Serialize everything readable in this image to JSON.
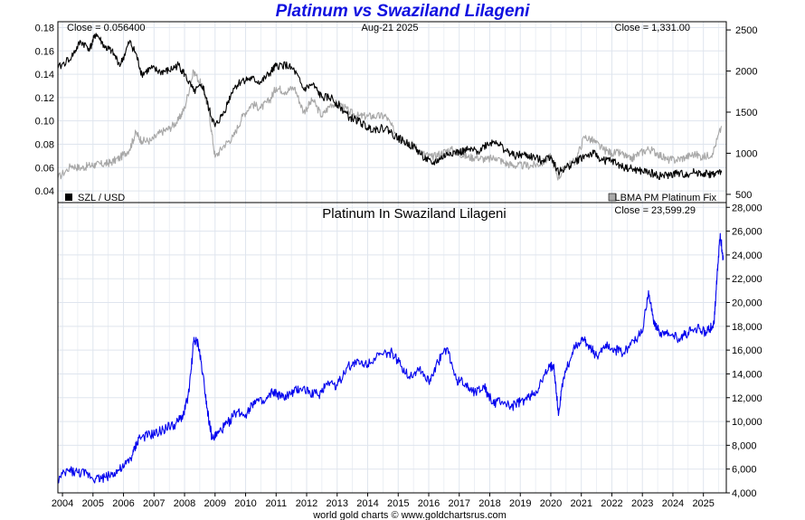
{
  "title": "Platinum vs Swaziland Lilageni",
  "footer": "world gold charts © www.goldchartsrus.com",
  "colors": {
    "title": "#1010e0",
    "szl": "#000000",
    "platinum_usd": "#a8a8a8",
    "platinum_szl": "#0000ee",
    "grid": "#dfe5ee"
  },
  "chart_data": [
    {
      "type": "line",
      "name": "top-panel",
      "header_left": "Close = 0.056400",
      "header_center": "Aug-21  2025",
      "header_right": "Close = 1,331.00",
      "x_ticks": [
        "2004",
        "2005",
        "2006",
        "2007",
        "2008",
        "2009",
        "2010",
        "2011",
        "2012",
        "2013",
        "2014",
        "2015",
        "2016",
        "2017",
        "2018",
        "2019",
        "2020",
        "2021",
        "2022",
        "2023",
        "2024",
        "2025"
      ],
      "xlim": [
        2003.85,
        2025.75
      ],
      "left_axis": {
        "ylim": [
          0.03,
          0.185
        ],
        "ticks": [
          "0.04",
          "0.06",
          "0.08",
          "0.10",
          "0.12",
          "0.14",
          "0.16",
          "0.18"
        ],
        "tick_values": [
          0.04,
          0.06,
          0.08,
          0.1,
          0.12,
          0.14,
          0.16,
          0.18
        ]
      },
      "right_axis": {
        "ylim": [
          400,
          2600
        ],
        "ticks": [
          "500",
          "1000",
          "1500",
          "2000",
          "2500"
        ],
        "tick_values": [
          500,
          1000,
          1500,
          2000,
          2500
        ]
      },
      "grid": true,
      "series": [
        {
          "name": "SZL / USD",
          "axis": "left",
          "x": [
            2003.85,
            2004.3,
            2004.6,
            2004.9,
            2005.1,
            2005.4,
            2005.6,
            2005.9,
            2006.2,
            2006.4,
            2006.6,
            2006.9,
            2007.2,
            2007.5,
            2007.8,
            2008.0,
            2008.3,
            2008.6,
            2008.8,
            2009.0,
            2009.3,
            2009.6,
            2009.9,
            2010.2,
            2010.5,
            2010.8,
            2011.0,
            2011.3,
            2011.6,
            2011.9,
            2012.2,
            2012.5,
            2012.8,
            2013.1,
            2013.4,
            2013.7,
            2014.0,
            2014.3,
            2014.6,
            2014.9,
            2015.2,
            2015.5,
            2015.8,
            2016.1,
            2016.4,
            2016.7,
            2017.0,
            2017.3,
            2017.6,
            2017.9,
            2018.2,
            2018.5,
            2018.8,
            2019.1,
            2019.4,
            2019.7,
            2020.0,
            2020.25,
            2020.5,
            2020.8,
            2021.1,
            2021.4,
            2021.7,
            2022.0,
            2022.3,
            2022.6,
            2022.9,
            2023.2,
            2023.5,
            2023.8,
            2024.1,
            2024.4,
            2024.7,
            2025.0,
            2025.3,
            2025.6
          ],
          "values": [
            0.145,
            0.155,
            0.168,
            0.162,
            0.175,
            0.163,
            0.16,
            0.148,
            0.168,
            0.158,
            0.14,
            0.145,
            0.142,
            0.143,
            0.148,
            0.14,
            0.125,
            0.13,
            0.11,
            0.095,
            0.108,
            0.128,
            0.135,
            0.136,
            0.133,
            0.141,
            0.147,
            0.148,
            0.143,
            0.127,
            0.131,
            0.12,
            0.12,
            0.112,
            0.103,
            0.1,
            0.094,
            0.093,
            0.094,
            0.087,
            0.082,
            0.078,
            0.07,
            0.063,
            0.068,
            0.073,
            0.073,
            0.075,
            0.074,
            0.08,
            0.083,
            0.075,
            0.07,
            0.071,
            0.069,
            0.066,
            0.07,
            0.056,
            0.06,
            0.065,
            0.07,
            0.072,
            0.066,
            0.066,
            0.061,
            0.059,
            0.057,
            0.056,
            0.053,
            0.053,
            0.055,
            0.054,
            0.056,
            0.055,
            0.054,
            0.056
          ]
        },
        {
          "name": "LBMA PM Platinum Fix",
          "axis": "right",
          "x": [
            2003.85,
            2004.3,
            2004.6,
            2004.9,
            2005.1,
            2005.4,
            2005.6,
            2005.9,
            2006.2,
            2006.4,
            2006.6,
            2006.9,
            2007.2,
            2007.5,
            2007.8,
            2008.0,
            2008.3,
            2008.6,
            2008.8,
            2009.0,
            2009.3,
            2009.6,
            2009.9,
            2010.2,
            2010.5,
            2010.8,
            2011.0,
            2011.3,
            2011.6,
            2011.9,
            2012.2,
            2012.5,
            2012.8,
            2013.1,
            2013.4,
            2013.7,
            2014.0,
            2014.3,
            2014.6,
            2014.9,
            2015.2,
            2015.5,
            2015.8,
            2016.1,
            2016.4,
            2016.7,
            2017.0,
            2017.3,
            2017.6,
            2017.9,
            2018.2,
            2018.5,
            2018.8,
            2019.1,
            2019.4,
            2019.7,
            2020.0,
            2020.25,
            2020.5,
            2020.8,
            2021.1,
            2021.4,
            2021.7,
            2022.0,
            2022.3,
            2022.6,
            2022.9,
            2023.2,
            2023.5,
            2023.8,
            2024.1,
            2024.4,
            2024.7,
            2025.0,
            2025.3,
            2025.6
          ],
          "values": [
            700,
            850,
            820,
            850,
            860,
            870,
            890,
            950,
            1050,
            1250,
            1150,
            1150,
            1250,
            1300,
            1400,
            1550,
            2000,
            1800,
            1500,
            950,
            1100,
            1200,
            1450,
            1600,
            1550,
            1650,
            1800,
            1750,
            1800,
            1500,
            1650,
            1450,
            1600,
            1600,
            1500,
            1450,
            1450,
            1450,
            1450,
            1250,
            1150,
            1100,
            1000,
            950,
            1000,
            1050,
            1000,
            950,
            950,
            920,
            950,
            880,
            850,
            850,
            850,
            880,
            960,
            700,
            850,
            900,
            1200,
            1150,
            1050,
            1000,
            1000,
            920,
            1000,
            1050,
            1000,
            920,
            920,
            950,
            990,
            950,
            1000,
            1331
          ]
        }
      ],
      "legend": [
        {
          "label": "SZL / USD",
          "placement": "bottom-left"
        },
        {
          "label": "LBMA PM Platinum Fix",
          "placement": "bottom-right"
        }
      ]
    },
    {
      "type": "line",
      "name": "bottom-panel",
      "title": "Platinum In Swaziland Lilageni",
      "header_right": "Close = 23,599.29",
      "x_ticks": [
        "2004",
        "2005",
        "2006",
        "2007",
        "2008",
        "2009",
        "2010",
        "2011",
        "2012",
        "2013",
        "2014",
        "2015",
        "2016",
        "2017",
        "2018",
        "2019",
        "2020",
        "2021",
        "2022",
        "2023",
        "2024",
        "2025"
      ],
      "xlim": [
        2003.85,
        2025.75
      ],
      "ylim": [
        4000,
        28400
      ],
      "y_ticks": [
        "4,000",
        "6,000",
        "8,000",
        "10,000",
        "12,000",
        "14,000",
        "16,000",
        "18,000",
        "20,000",
        "22,000",
        "24,000",
        "26,000",
        "28,000"
      ],
      "y_tick_values": [
        4000,
        6000,
        8000,
        10000,
        12000,
        14000,
        16000,
        18000,
        20000,
        22000,
        24000,
        26000,
        28000
      ],
      "grid": true,
      "series": [
        {
          "name": "Platinum In Swaziland Lilageni",
          "x": [
            2003.85,
            2004.2,
            2004.5,
            2004.8,
            2005.1,
            2005.4,
            2005.7,
            2006.0,
            2006.3,
            2006.5,
            2006.8,
            2007.1,
            2007.4,
            2007.7,
            2007.95,
            2008.15,
            2008.3,
            2008.45,
            2008.6,
            2008.75,
            2008.9,
            2009.1,
            2009.4,
            2009.7,
            2010.0,
            2010.3,
            2010.6,
            2010.9,
            2011.2,
            2011.5,
            2011.8,
            2012.1,
            2012.4,
            2012.7,
            2013.0,
            2013.3,
            2013.6,
            2013.9,
            2014.2,
            2014.5,
            2014.8,
            2015.1,
            2015.4,
            2015.7,
            2016.0,
            2016.3,
            2016.6,
            2016.9,
            2017.2,
            2017.5,
            2017.8,
            2018.1,
            2018.4,
            2018.7,
            2019.0,
            2019.3,
            2019.6,
            2019.9,
            2020.1,
            2020.25,
            2020.4,
            2020.7,
            2021.0,
            2021.2,
            2021.5,
            2021.8,
            2022.1,
            2022.4,
            2022.7,
            2023.0,
            2023.2,
            2023.4,
            2023.6,
            2023.9,
            2024.2,
            2024.5,
            2024.8,
            2025.1,
            2025.35,
            2025.45,
            2025.55,
            2025.65
          ],
          "values": [
            5100,
            5900,
            5700,
            5600,
            5200,
            5300,
            5700,
            6100,
            7200,
            8600,
            8800,
            9000,
            9500,
            9700,
            10500,
            12500,
            16800,
            16500,
            14000,
            11000,
            8500,
            9000,
            9800,
            10800,
            10600,
            11800,
            11500,
            12500,
            12000,
            12300,
            12800,
            12500,
            12200,
            13400,
            13000,
            14500,
            15000,
            14800,
            15300,
            15600,
            15800,
            14600,
            13800,
            14500,
            13300,
            15000,
            16200,
            13500,
            13200,
            12500,
            13000,
            11500,
            11700,
            11200,
            11600,
            12000,
            12800,
            14300,
            14800,
            10500,
            13500,
            15800,
            17000,
            16500,
            15500,
            16500,
            16000,
            15800,
            16800,
            17500,
            21000,
            18000,
            17500,
            17200,
            17000,
            17500,
            17800,
            17500,
            18200,
            22500,
            25800,
            23600
          ]
        }
      ]
    }
  ]
}
